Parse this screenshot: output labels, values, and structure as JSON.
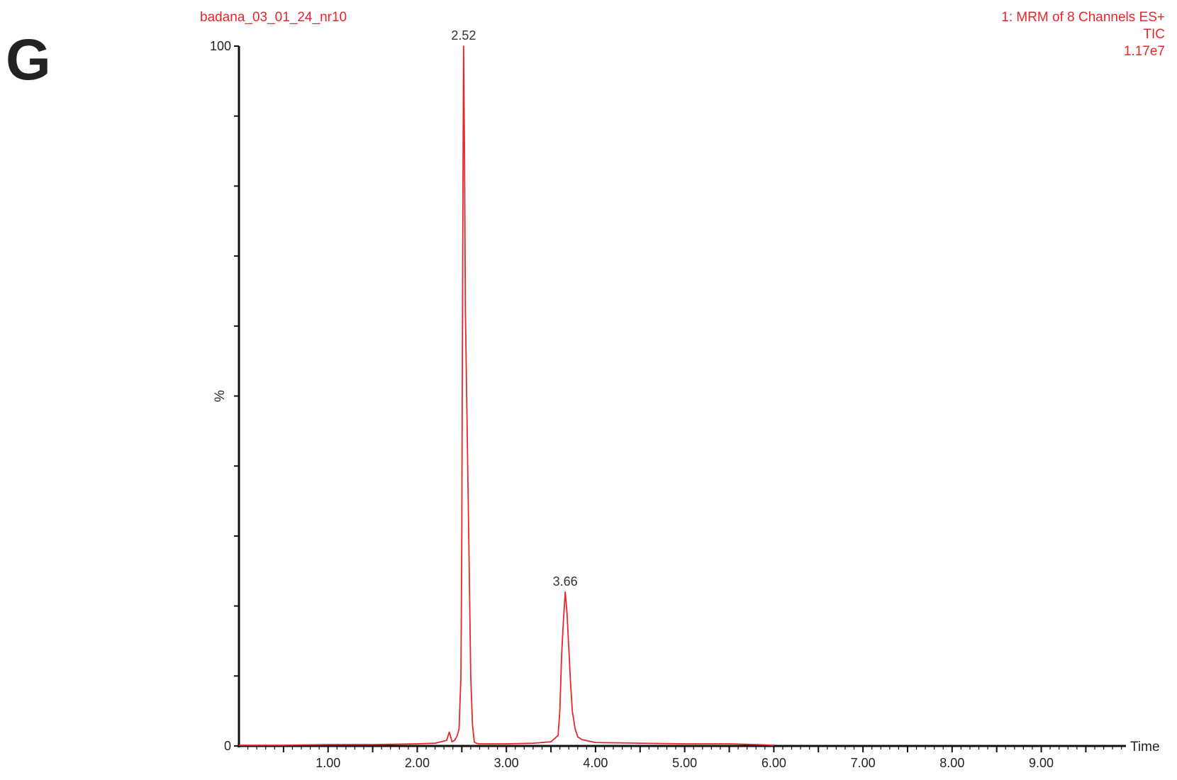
{
  "panel_label": "G",
  "header": {
    "sample_name": "badana_03_01_24_nr10",
    "function_line": "1: MRM of 8 Channels ES+",
    "trace_line": "TIC",
    "intensity_line": "1.17e7"
  },
  "chart_data": {
    "type": "line",
    "title": "",
    "xlabel": "Time",
    "ylabel": "%",
    "xlim": [
      0,
      9.95
    ],
    "ylim": [
      0,
      100
    ],
    "x_ticks": [
      1.0,
      2.0,
      3.0,
      4.0,
      5.0,
      6.0,
      7.0,
      8.0,
      9.0
    ],
    "x_tick_labels": [
      "1.00",
      "2.00",
      "3.00",
      "4.00",
      "5.00",
      "6.00",
      "7.00",
      "8.00",
      "9.00"
    ],
    "y_tick_labels": [
      "0",
      "100"
    ],
    "series": [
      {
        "color": "#e8262c",
        "x": [
          0.0,
          0.5,
          1.0,
          1.5,
          2.0,
          2.2,
          2.33,
          2.36,
          2.39,
          2.42,
          2.45,
          2.47,
          2.49,
          2.5,
          2.51,
          2.52,
          2.53,
          2.54,
          2.56,
          2.58,
          2.6,
          2.62,
          2.64,
          2.66,
          2.7,
          3.0,
          3.3,
          3.5,
          3.58,
          3.6,
          3.62,
          3.64,
          3.66,
          3.68,
          3.7,
          3.72,
          3.74,
          3.77,
          3.8,
          3.85,
          4.0,
          4.5,
          5.0,
          5.5,
          5.8,
          6.0
        ],
        "y": [
          0.1,
          0.1,
          0.2,
          0.2,
          0.3,
          0.4,
          0.8,
          2.0,
          0.6,
          0.8,
          1.5,
          2.5,
          10,
          30,
          70,
          100,
          85,
          62,
          45,
          28,
          10,
          3,
          0.6,
          0.4,
          0.3,
          0.3,
          0.4,
          0.6,
          1.5,
          5,
          13,
          18,
          22,
          19,
          14,
          9,
          5,
          2.5,
          1.3,
          0.9,
          0.5,
          0.4,
          0.3,
          0.3,
          0.2,
          0.1
        ]
      }
    ],
    "annotations": [
      {
        "x": 2.52,
        "y": 100,
        "text": "2.52"
      },
      {
        "x": 3.66,
        "y": 22,
        "text": "3.66"
      }
    ]
  }
}
